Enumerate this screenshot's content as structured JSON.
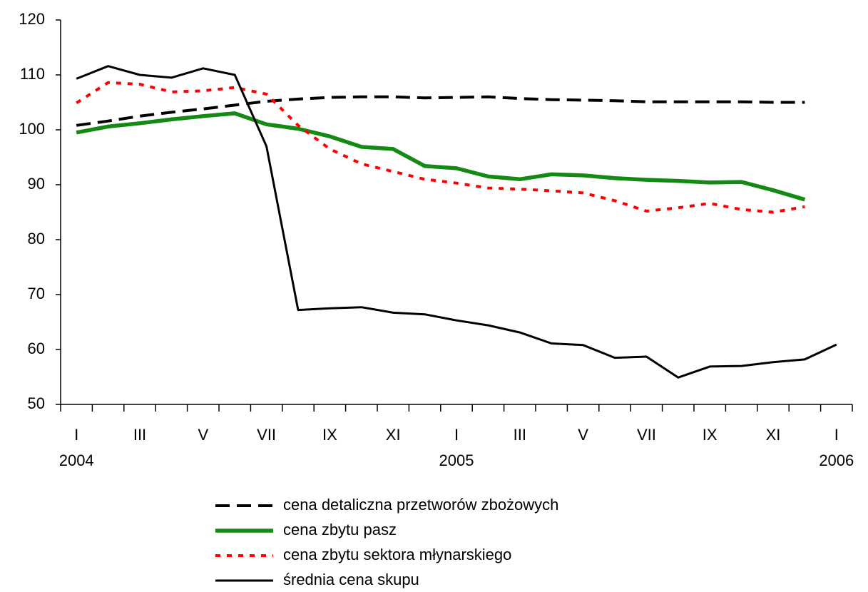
{
  "chart_data": {
    "type": "line",
    "categories": [
      "I",
      null,
      "III",
      null,
      "V",
      null,
      "VII",
      null,
      "IX",
      null,
      "XI",
      null,
      "I",
      null,
      "III",
      null,
      "V",
      null,
      "VII",
      null,
      "IX",
      null,
      "XI",
      null,
      "I"
    ],
    "years": [
      "2004",
      null,
      null,
      null,
      null,
      null,
      null,
      null,
      null,
      null,
      null,
      null,
      "2005",
      null,
      null,
      null,
      null,
      null,
      null,
      null,
      null,
      null,
      null,
      null,
      "2006"
    ],
    "ylim": [
      50,
      120
    ],
    "yticks": [
      50,
      60,
      70,
      80,
      90,
      100,
      110,
      120
    ],
    "grid": false,
    "series": [
      {
        "name": "cena detaliczna przetworów zbożowych",
        "color": "#000000",
        "style": "dashed",
        "values": [
          100.8,
          101.6,
          102.5,
          103.2,
          103.8,
          104.5,
          105.2,
          105.6,
          105.9,
          106,
          106,
          105.8,
          105.9,
          106,
          105.7,
          105.5,
          105.4,
          105.3,
          105.1,
          105.1,
          105.1,
          105.1,
          105,
          105,
          null
        ]
      },
      {
        "name": "cena zbytu pasz",
        "color": "#138a13",
        "style": "thick",
        "values": [
          99.5,
          100.6,
          101.2,
          101.9,
          102.5,
          103,
          101,
          100.2,
          98.8,
          96.9,
          96.5,
          93.4,
          93,
          91.5,
          91,
          91.9,
          91.7,
          91.2,
          90.9,
          90.7,
          90.4,
          90.5,
          89,
          87.3,
          null
        ]
      },
      {
        "name": "cena zbytu sektora młynarskiego",
        "color": "#ff0000",
        "style": "dotted",
        "values": [
          104.9,
          108.6,
          108.3,
          106.9,
          107.1,
          107.7,
          106.5,
          100.8,
          96.5,
          93.8,
          92.4,
          91,
          90.3,
          89.4,
          89.2,
          88.9,
          88.5,
          87.1,
          85.2,
          85.8,
          86.6,
          85.5,
          85,
          86,
          null
        ]
      },
      {
        "name": "średnia cena  skupu",
        "color": "#000000",
        "style": "solid",
        "values": [
          109.3,
          111.6,
          110,
          109.5,
          111.2,
          110,
          97,
          67.2,
          67.5,
          67.7,
          66.7,
          66.4,
          65.3,
          64.4,
          63.1,
          61.1,
          60.8,
          58.5,
          58.7,
          54.9,
          56.9,
          57,
          57.7,
          58.2,
          60.9
        ]
      }
    ]
  }
}
